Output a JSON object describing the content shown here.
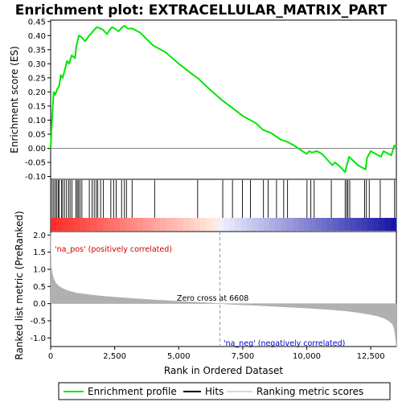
{
  "chart_data": {
    "type": "line",
    "title": "Enrichment plot: EXTRACELLULAR_MATRIX_PART",
    "colors": {
      "enrichment_line": "#00e600",
      "hits": "#000000",
      "ranking_fill": "#b0b0b0",
      "pos_label": "#cc0000",
      "neg_label": "#0000cc",
      "zero_cross_line": "#999999"
    },
    "top_panel": {
      "ylabel": "Enrichment score (ES)",
      "ylim": [
        -0.11,
        0.455
      ],
      "yticks": [
        -0.1,
        -0.05,
        0.0,
        0.05,
        0.1,
        0.15,
        0.2,
        0.25,
        0.3,
        0.35,
        0.4,
        0.45
      ],
      "ytick_labels": [
        "-0.10",
        "-0.05",
        "0.00",
        "0.05",
        "0.10",
        "0.15",
        "0.20",
        "0.25",
        "0.30",
        "0.35",
        "0.40",
        "0.45"
      ],
      "series": [
        {
          "x": [
            0,
            40,
            80,
            120,
            180,
            250,
            330,
            400,
            470,
            560,
            640,
            720,
            820,
            950,
            1000,
            1050,
            1100,
            1200,
            1350,
            1500,
            1600,
            1700,
            1800,
            1950,
            2050,
            2200,
            2300,
            2400,
            2500,
            2650,
            2800,
            2900,
            3000,
            3200,
            3500,
            4000,
            4100,
            4500,
            5000,
            5500,
            5800,
            6200,
            6700,
            7000,
            7500,
            8000,
            8300,
            8600,
            9000,
            9200,
            9500,
            10000,
            10100,
            10200,
            10400,
            10600,
            11000,
            11100,
            11300,
            11500,
            11560,
            11600,
            11650,
            12000,
            12300,
            12350,
            12500,
            12800,
            12900,
            13000,
            13300,
            13420,
            13500
          ],
          "y": [
            0.0,
            0.08,
            0.14,
            0.2,
            0.19,
            0.21,
            0.22,
            0.26,
            0.25,
            0.28,
            0.31,
            0.3,
            0.33,
            0.32,
            0.36,
            0.38,
            0.4,
            0.395,
            0.38,
            0.4,
            0.41,
            0.42,
            0.43,
            0.425,
            0.42,
            0.405,
            0.42,
            0.43,
            0.425,
            0.415,
            0.43,
            0.435,
            0.425,
            0.425,
            0.41,
            0.365,
            0.36,
            0.34,
            0.3,
            0.265,
            0.245,
            0.21,
            0.17,
            0.15,
            0.115,
            0.09,
            0.065,
            0.055,
            0.03,
            0.025,
            0.01,
            -0.02,
            -0.01,
            -0.015,
            -0.01,
            -0.02,
            -0.06,
            -0.05,
            -0.065,
            -0.085,
            -0.06,
            -0.05,
            -0.03,
            -0.06,
            -0.075,
            -0.035,
            -0.01,
            -0.025,
            -0.03,
            -0.01,
            -0.025,
            0.01,
            0.005
          ]
        }
      ]
    },
    "hits_panel": {
      "hit_ranks": [
        60,
        120,
        180,
        230,
        290,
        330,
        420,
        470,
        540,
        620,
        700,
        760,
        830,
        990,
        1040,
        1090,
        1150,
        1220,
        1510,
        1620,
        1700,
        1780,
        1840,
        1950,
        2060,
        2350,
        2460,
        2560,
        2770,
        2880,
        2960,
        3180,
        4060,
        5740,
        6720,
        7100,
        7490,
        7800,
        8310,
        8490,
        8820,
        9100,
        9250,
        10010,
        10160,
        10290,
        10960,
        11500,
        11560,
        11610,
        11680,
        12260,
        12330,
        12440,
        12870,
        13430
      ]
    },
    "bottom_panel": {
      "ylabel": "Ranked list metric (PreRanked)",
      "xlabel": "Rank in Ordered Dataset",
      "xlim": [
        0,
        13500
      ],
      "xticks": [
        0,
        2500,
        5000,
        7500,
        10000,
        12500
      ],
      "xtick_labels": [
        "0",
        "2,500",
        "5,000",
        "7,500",
        "10,000",
        "12,500"
      ],
      "ylim": [
        -1.25,
        2.1
      ],
      "yticks": [
        -1.0,
        -0.5,
        0.0,
        0.5,
        1.0,
        1.5,
        2.0
      ],
      "ytick_labels": [
        "-1.0",
        "-0.5",
        "0.0",
        "0.5",
        "1.0",
        "1.5",
        "2.0"
      ],
      "metric_profile": {
        "rank": [
          0,
          20,
          60,
          120,
          200,
          300,
          450,
          600,
          800,
          1000,
          1500,
          2000,
          2500,
          3000,
          4000,
          5000,
          6000,
          6608,
          7000,
          8000,
          9000,
          10000,
          11000,
          11500,
          12000,
          12500,
          12800,
          13000,
          13200,
          13350,
          13420,
          13460,
          13500
        ],
        "value": [
          2.05,
          1.1,
          0.9,
          0.72,
          0.6,
          0.52,
          0.45,
          0.4,
          0.35,
          0.31,
          0.26,
          0.22,
          0.19,
          0.16,
          0.11,
          0.07,
          0.03,
          0.0,
          -0.02,
          -0.05,
          -0.09,
          -0.13,
          -0.18,
          -0.21,
          -0.26,
          -0.32,
          -0.37,
          -0.42,
          -0.5,
          -0.6,
          -0.75,
          -0.95,
          -1.25
        ]
      },
      "zero_cross_rank": 6608,
      "zero_cross_label": "Zero cross at 6608",
      "pos_label": "'na_pos' (positively correlated)",
      "neg_label": "'na_neg' (negatively correlated)"
    },
    "legend": {
      "items": [
        {
          "label": "Enrichment profile",
          "color": "#00e600"
        },
        {
          "label": "Hits",
          "color": "#000000"
        },
        {
          "label": "Ranking metric scores",
          "color": "#b0b0b0"
        }
      ]
    }
  }
}
